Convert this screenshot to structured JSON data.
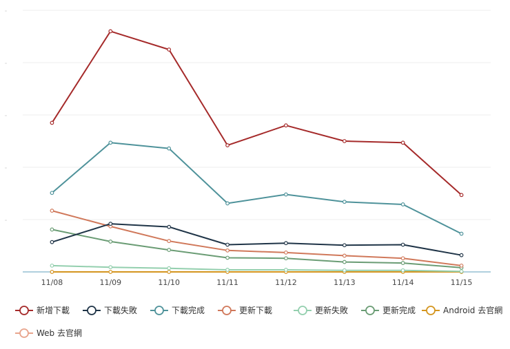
{
  "chart_data": {
    "type": "line",
    "categories": [
      "11/08",
      "11/09",
      "11/10",
      "11/11",
      "11/12",
      "11/13",
      "11/14",
      "11/15"
    ],
    "ylim": [
      0,
      500
    ],
    "grid": true,
    "legend_position": "bottom",
    "series": [
      {
        "name": "新增下載",
        "color": "#a52a2a",
        "values": [
          285,
          460,
          425,
          242,
          280,
          250,
          247,
          147
        ]
      },
      {
        "name": "下載失敗",
        "color": "#1f3447",
        "values": [
          57,
          92,
          86,
          52,
          55,
          51,
          52,
          32
        ]
      },
      {
        "name": "下載完成",
        "color": "#4e929a",
        "values": [
          151,
          247,
          236,
          131,
          148,
          134,
          129,
          73
        ]
      },
      {
        "name": "更新下載",
        "color": "#d0785a",
        "values": [
          117,
          87,
          59,
          41,
          37,
          31,
          26,
          12
        ]
      },
      {
        "name": "更新失敗",
        "color": "#93cfae",
        "values": [
          12,
          9,
          7,
          4,
          4,
          3,
          3,
          1
        ]
      },
      {
        "name": "更新完成",
        "color": "#6a9c74",
        "values": [
          81,
          58,
          42,
          27,
          26,
          19,
          17,
          8
        ]
      },
      {
        "name": "Android 去官網",
        "color": "#d4951e",
        "values": [
          0,
          0,
          0,
          0,
          0,
          0,
          0,
          0
        ]
      },
      {
        "name": "Web 去官網",
        "color": "#e8a48c",
        "values": [
          0,
          0,
          0,
          0,
          0,
          0,
          0,
          0
        ]
      }
    ]
  }
}
